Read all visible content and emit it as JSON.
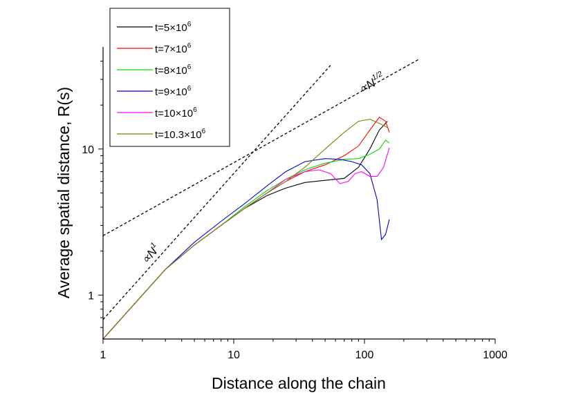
{
  "chart_data": {
    "type": "line",
    "xlabel": "Distance along the chain",
    "ylabel": "Average spatial distance, R(s)",
    "xscale": "log",
    "yscale": "log",
    "xlim": [
      1,
      1000
    ],
    "ylim": [
      0.5,
      50
    ],
    "x_ticks": [
      {
        "value": 1,
        "label": "1"
      },
      {
        "value": 10,
        "label": "10"
      },
      {
        "value": 100,
        "label": "100"
      },
      {
        "value": 1000,
        "label": "1000"
      }
    ],
    "y_ticks": [
      {
        "value": 1,
        "label": "1"
      },
      {
        "value": 10,
        "label": "10"
      }
    ],
    "legend_position": "top-left",
    "series": [
      {
        "name": "t=5×10",
        "sup": "6",
        "color": "#000000",
        "x": [
          1,
          2,
          3,
          5,
          8,
          12,
          18,
          25,
          35,
          50,
          70,
          90,
          110,
          130,
          150
        ],
        "y": [
          0.5,
          1.0,
          1.5,
          2.2,
          3.0,
          3.9,
          4.8,
          5.4,
          5.9,
          6.1,
          6.3,
          7.5,
          10.0,
          13.5,
          15.5
        ]
      },
      {
        "name": "t=7×10",
        "sup": "6",
        "color": "#ff0000",
        "x": [
          1,
          2,
          3,
          5,
          8,
          12,
          18,
          25,
          35,
          50,
          70,
          90,
          110,
          130,
          145,
          155
        ],
        "y": [
          0.5,
          1.0,
          1.5,
          2.2,
          3.0,
          3.9,
          5.0,
          6.0,
          7.0,
          7.8,
          9.0,
          10.5,
          13.5,
          16.5,
          15.5,
          13.0
        ]
      },
      {
        "name": "t=8×10",
        "sup": "6",
        "color": "#00dd00",
        "x": [
          1,
          2,
          3,
          5,
          8,
          12,
          18,
          25,
          35,
          50,
          70,
          90,
          110,
          130,
          145,
          155
        ],
        "y": [
          0.5,
          1.0,
          1.5,
          2.2,
          3.0,
          4.0,
          5.2,
          6.2,
          7.2,
          8.0,
          8.5,
          8.6,
          9.2,
          10.0,
          11.5,
          11.0
        ]
      },
      {
        "name": "t=9×10",
        "sup": "6",
        "color": "#0000cc",
        "x": [
          1,
          2,
          3,
          5,
          8,
          12,
          18,
          25,
          35,
          50,
          65,
          80,
          95,
          110,
          125,
          135,
          145,
          155
        ],
        "y": [
          0.5,
          1.0,
          1.5,
          2.3,
          3.2,
          4.2,
          5.6,
          7.0,
          8.2,
          8.6,
          8.5,
          8.2,
          7.8,
          6.8,
          4.5,
          2.4,
          2.6,
          3.3
        ]
      },
      {
        "name": "t=10×10",
        "sup": "6",
        "color": "#ff00ff",
        "x": [
          1,
          2,
          3,
          5,
          8,
          12,
          18,
          25,
          35,
          45,
          55,
          65,
          75,
          85,
          95,
          110,
          125,
          140,
          155
        ],
        "y": [
          0.5,
          1.0,
          1.5,
          2.2,
          3.0,
          3.9,
          5.0,
          6.2,
          7.0,
          7.2,
          6.8,
          5.8,
          6.0,
          6.8,
          7.0,
          6.5,
          6.5,
          7.5,
          10.2
        ]
      },
      {
        "name": "t=10.3×10",
        "sup": "6",
        "color": "#808000",
        "x": [
          1,
          2,
          3,
          5,
          8,
          12,
          18,
          25,
          35,
          50,
          70,
          90,
          110,
          130,
          150
        ],
        "y": [
          0.5,
          1.0,
          1.5,
          2.2,
          3.0,
          3.9,
          5.0,
          6.0,
          7.5,
          10.0,
          13.0,
          15.5,
          16.0,
          15.0,
          14.0
        ]
      }
    ],
    "reference_lines": [
      {
        "label": "∝N",
        "sup": "1",
        "x": [
          1,
          55
        ],
        "y": [
          0.68,
          37.4
        ],
        "label_at": {
          "x": 2.15,
          "y": 1.62
        }
      },
      {
        "label": "∝N",
        "sup": "1/2",
        "x": [
          1,
          260
        ],
        "y": [
          2.55,
          41.1
        ],
        "label_at": {
          "x": 95,
          "y": 24.0
        }
      }
    ]
  }
}
